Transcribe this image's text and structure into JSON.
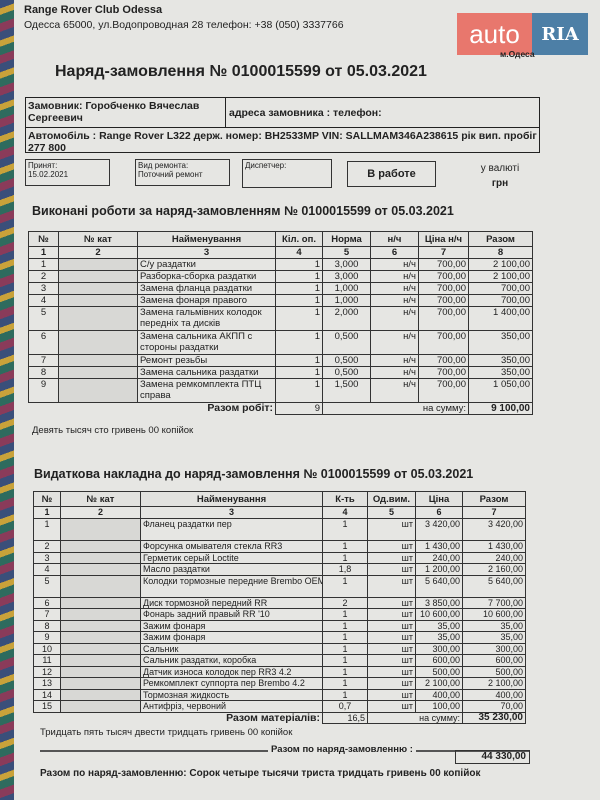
{
  "header": {
    "company": "Range Rover Club Odessa",
    "address": "Одесса 65000, ул.Водопроводная 28 телефон: +38 (050) 3337766",
    "city": "м.Одеса"
  },
  "logo": {
    "left": "auto",
    "right": "RIA",
    "accent": "#e8776d",
    "brand": "#4d7fa6"
  },
  "title": "Наряд-замовлення № 0100015599 от 05.03.2021",
  "customer": {
    "name": "Замовник: Горобченко Вячеслав Сергеевич",
    "address": "адреса замовника :   телефон:",
    "car": "Автомобіль : Range Rover L322  держ. номер:  BH2533MP   VIN: SALLMAM346A238615 рік вип.  пробіг 277 800"
  },
  "boxes": {
    "accepted_label": "Принят:",
    "accepted_date": "15.02.2021",
    "repair_label": "Вид ремонта:",
    "repair_value": "Поточний ремонт",
    "dispatcher_label": "Диспетчер:",
    "status": "В работе",
    "currency_label": "у валюті",
    "currency": "грн"
  },
  "works": {
    "title": "Виконані роботи за наряд-замовленням №  0100015599 от 05.03.2021",
    "headers": [
      "№",
      "№ кат",
      "Найменування",
      "Кіл. оп.",
      "Норма",
      "н/ч",
      "Ціна н/ч",
      "Разом"
    ],
    "col_numbers": [
      "1",
      "2",
      "3",
      "4",
      "5",
      "6",
      "7",
      "8"
    ],
    "rows": [
      {
        "n": "1",
        "name": "С/у раздатки",
        "qty": "1",
        "norm": "3,000",
        "unit": "н/ч",
        "price": "700,00",
        "total": "2 100,00"
      },
      {
        "n": "2",
        "name": "Разборка-сборка раздатки",
        "qty": "1",
        "norm": "3,000",
        "unit": "н/ч",
        "price": "700,00",
        "total": "2 100,00"
      },
      {
        "n": "3",
        "name": "Замена фланца раздатки",
        "qty": "1",
        "norm": "1,000",
        "unit": "н/ч",
        "price": "700,00",
        "total": "700,00"
      },
      {
        "n": "4",
        "name": "Замена фонаря правого",
        "qty": "1",
        "norm": "1,000",
        "unit": "н/ч",
        "price": "700,00",
        "total": "700,00"
      },
      {
        "n": "5",
        "name": "Замена гальмівних колодок передніх та дисків",
        "qty": "1",
        "norm": "2,000",
        "unit": "н/ч",
        "price": "700,00",
        "total": "1 400,00"
      },
      {
        "n": "6",
        "name": "Замена сальника АКПП с стороны раздатки",
        "qty": "1",
        "norm": "0,500",
        "unit": "н/ч",
        "price": "700,00",
        "total": "350,00"
      },
      {
        "n": "7",
        "name": "Ремонт резьбы",
        "qty": "1",
        "norm": "0,500",
        "unit": "н/ч",
        "price": "700,00",
        "total": "350,00"
      },
      {
        "n": "8",
        "name": "Замена сальника раздатки",
        "qty": "1",
        "norm": "0,500",
        "unit": "н/ч",
        "price": "700,00",
        "total": "350,00"
      },
      {
        "n": "9",
        "name": "Замена ремкомплекта ПТЦ справа",
        "qty": "1",
        "norm": "1,500",
        "unit": "н/ч",
        "price": "700,00",
        "total": "1 050,00"
      }
    ],
    "total_label": "Разом робіт:",
    "total_qty": "9",
    "sum_label": "на сумму:",
    "sum": "9 100,00",
    "words": "Девять тысяч сто гривень 00 копійок"
  },
  "materials": {
    "title": "Видаткова накладна до наряд-замовлення №  0100015599 от 05.03.2021",
    "headers": [
      "№",
      "№ кат",
      "Найменування",
      "К-ть",
      "Од.вим.",
      "Ціна",
      "Разом"
    ],
    "col_numbers": [
      "1",
      "2",
      "3",
      "4",
      "5",
      "6",
      "7"
    ],
    "rows": [
      {
        "n": "1",
        "name": "Фланец раздатки пер",
        "qty": "1",
        "unit": "шт",
        "price": "3 420,00",
        "total": "3 420,00"
      },
      {
        "n": "2",
        "name": "Форсунка омывателя стекла RR3",
        "qty": "1",
        "unit": "шт",
        "price": "1 430,00",
        "total": "1 430,00"
      },
      {
        "n": "3",
        "name": "Герметик серый Loctite",
        "qty": "1",
        "unit": "шт",
        "price": "240,00",
        "total": "240,00"
      },
      {
        "n": "4",
        "name": "Масло раздатки",
        "qty": "1,8",
        "unit": "шт",
        "price": "1 200,00",
        "total": "2 160,00"
      },
      {
        "n": "5",
        "name": "Колодки тормозные передние Brembo OEM",
        "qty": "1",
        "unit": "шт",
        "price": "5 640,00",
        "total": "5 640,00"
      },
      {
        "n": "6",
        "name": "Диск тормозной передний RR",
        "qty": "2",
        "unit": "шт",
        "price": "3 850,00",
        "total": "7 700,00"
      },
      {
        "n": "7",
        "name": "Фонарь задний правый RR '10",
        "qty": "1",
        "unit": "шт",
        "price": "10 600,00",
        "total": "10 600,00"
      },
      {
        "n": "8",
        "name": "Зажим фонаря",
        "qty": "1",
        "unit": "шт",
        "price": "35,00",
        "total": "35,00"
      },
      {
        "n": "9",
        "name": "Зажим фонаря",
        "qty": "1",
        "unit": "шт",
        "price": "35,00",
        "total": "35,00"
      },
      {
        "n": "10",
        "name": "Сальник",
        "qty": "1",
        "unit": "шт",
        "price": "300,00",
        "total": "300,00"
      },
      {
        "n": "11",
        "name": "Сальник раздатки, коробка",
        "qty": "1",
        "unit": "шт",
        "price": "600,00",
        "total": "600,00"
      },
      {
        "n": "12",
        "name": "Датчик износа колодок пер RR3 4.2",
        "qty": "1",
        "unit": "шт",
        "price": "500,00",
        "total": "500,00"
      },
      {
        "n": "13",
        "name": "Ремкомплект суппорта пер Brembo 4.2",
        "qty": "1",
        "unit": "шт",
        "price": "2 100,00",
        "total": "2 100,00"
      },
      {
        "n": "14",
        "name": "Тормозная жидкость",
        "qty": "1",
        "unit": "шт",
        "price": "400,00",
        "total": "400,00"
      },
      {
        "n": "15",
        "name": "Антифріз, червоний",
        "qty": "0,7",
        "unit": "шт",
        "price": "100,00",
        "total": "70,00"
      }
    ],
    "total_label": "Разом матеріалів:",
    "total_qty": "16,5",
    "sum_label": "на сумму:",
    "sum": "35 230,00",
    "words": "Тридцать пять тысяч двести тридцать гривень 00 копійок"
  },
  "grand": {
    "label": "Разом по наряд-замовленню :",
    "value": "44 330,00",
    "words": "Разом по наряд-замовленню: Сорок четыре тысячи триста тридцать гривень 00 копійок"
  }
}
